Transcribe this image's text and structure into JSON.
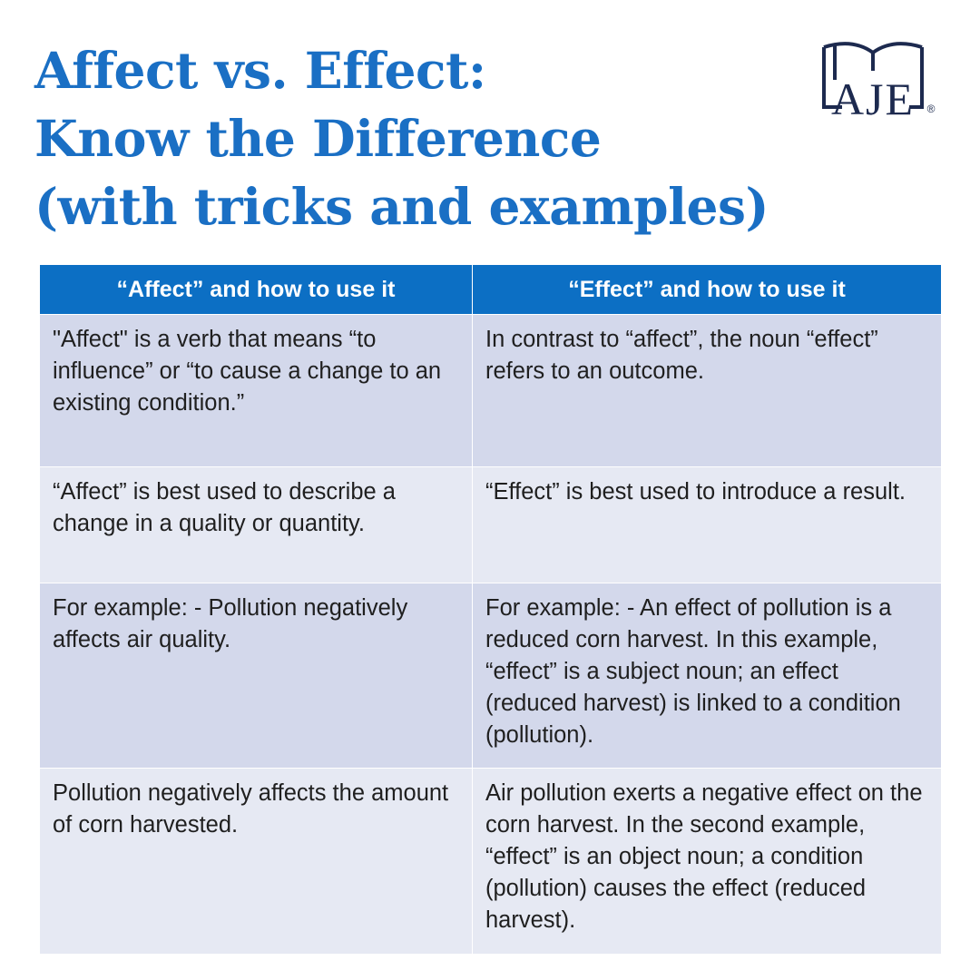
{
  "header": {
    "title": [
      "Affect vs. Effect:",
      "Know the Difference",
      "(with tricks and examples)"
    ],
    "logo": {
      "text": "AJE",
      "mark": "®"
    }
  },
  "table": {
    "columns": [
      "“Affect” and how to use it",
      "“Effect” and how to use it"
    ],
    "rows": [
      [
        "\"Affect\" is a verb that means “to influence” or “to cause a change to an existing condition.”",
        "In contrast to “affect”, the noun “effect” refers to an outcome."
      ],
      [
        "“Affect” is best used to describe a change in a quality or quantity.",
        "“Effect” is best used to introduce a result."
      ],
      [
        "For example: - Pollution negatively affects air quality.",
        "For example: - An effect of pollution is a reduced corn harvest. In this example, “effect” is a subject noun; an effect (reduced harvest) is linked to a condition (pollution)."
      ],
      [
        "Pollution negatively affects the amount of corn harvested.",
        "Air pollution exerts a negative effect on the corn harvest. In the second example, “effect” is an object noun; a condition (pollution) causes the effect (reduced harvest)."
      ]
    ]
  }
}
